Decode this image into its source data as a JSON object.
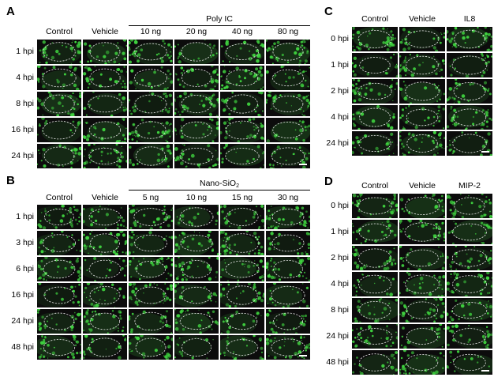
{
  "panels": [
    {
      "id": "A",
      "label": "A",
      "group_title": "Poly IC",
      "group_title_sub": "",
      "columns": [
        "Control",
        "Vehicle",
        "10 ng",
        "20 ng",
        "40 ng",
        "80 ng"
      ],
      "group_columns_start": 2,
      "rows": [
        "1 hpi",
        "4 hpi",
        "8 hpi",
        "16 hpi",
        "24 hpi"
      ]
    },
    {
      "id": "B",
      "label": "B",
      "group_title": "Nano-SiO",
      "group_title_sub": "2",
      "columns": [
        "Control",
        "Vehicle",
        "5 ng",
        "10 ng",
        "15 ng",
        "30 ng"
      ],
      "group_columns_start": 2,
      "rows": [
        "1 hpi",
        "3 hpi",
        "6 hpi",
        "16 hpi",
        "24 hpi",
        "48 hpi"
      ]
    },
    {
      "id": "C",
      "label": "C",
      "group_title": "",
      "group_title_sub": "",
      "columns": [
        "Control",
        "Vehicle",
        "IL8"
      ],
      "group_columns_start": null,
      "rows": [
        "0 hpi",
        "1 hpi",
        "2 hpi",
        "4 hpi",
        "24 hpi"
      ]
    },
    {
      "id": "D",
      "label": "D",
      "group_title": "",
      "group_title_sub": "",
      "columns": [
        "Control",
        "Vehicle",
        "MIP-2"
      ],
      "group_columns_start": null,
      "rows": [
        "0 hpi",
        "1 hpi",
        "2 hpi",
        "4 hpi",
        "8 hpi",
        "24 hpi",
        "48 hpi"
      ]
    }
  ],
  "colors": {
    "background": "#0c0c0c",
    "fluorescence": "#3fd23f",
    "outline": "#e6e6e6"
  }
}
